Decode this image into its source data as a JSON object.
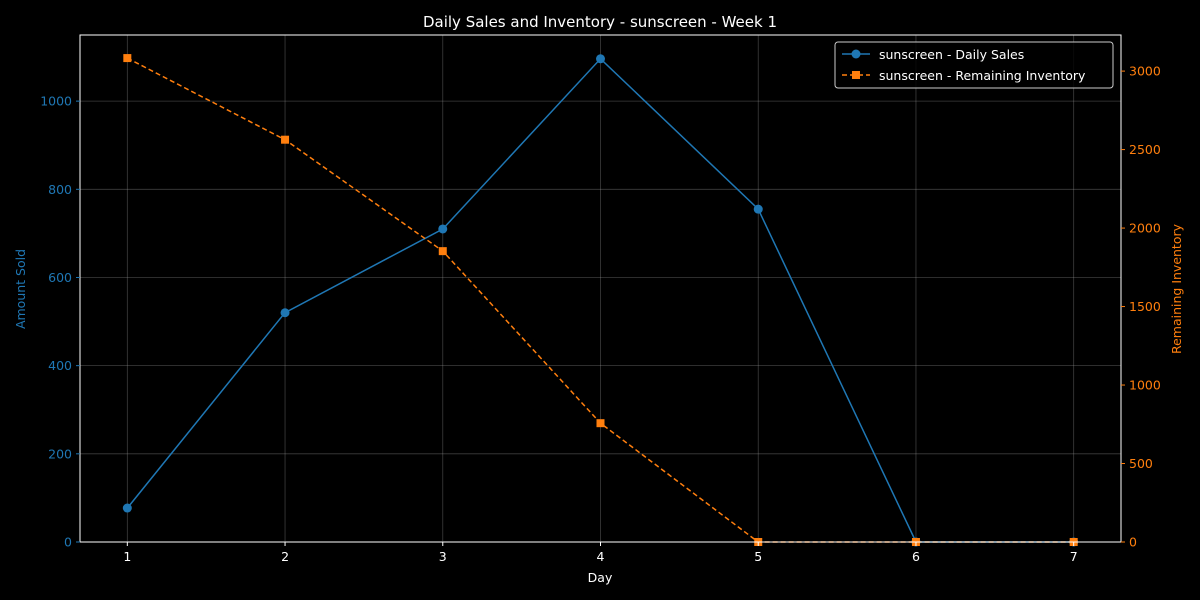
{
  "chart_data": {
    "type": "line",
    "title": "Daily Sales and Inventory - sunscreen - Week 1",
    "xlabel": "Day",
    "ylabel_left": "Amount Sold",
    "ylabel_right": "Remaining Inventory",
    "x": [
      1,
      2,
      3,
      4,
      5,
      6,
      7
    ],
    "x_ticks": [
      "1",
      "2",
      "3",
      "4",
      "5",
      "6",
      "7"
    ],
    "xlim": [
      0.7,
      7.3
    ],
    "ylim_left": [
      0,
      1150
    ],
    "ylim_right": [
      0,
      3230
    ],
    "yticks_left": [
      "0",
      "200",
      "400",
      "600",
      "800",
      "1000"
    ],
    "yticks_right": [
      "0",
      "500",
      "1000",
      "1500",
      "2000",
      "2500",
      "3000"
    ],
    "grid": true,
    "legend_position": "top-right",
    "background": "#000000",
    "series": [
      {
        "name": "sunscreen - Daily Sales",
        "axis": "left",
        "color": "#1f77b4",
        "linestyle": "solid",
        "marker": "circle",
        "values": [
          77,
          520,
          710,
          1096,
          755,
          0,
          0
        ]
      },
      {
        "name": "sunscreen - Remaining Inventory",
        "axis": "right",
        "color": "#ff7f0e",
        "linestyle": "dashed",
        "marker": "square",
        "values": [
          3083,
          2563,
          1853,
          757,
          0,
          0,
          0
        ]
      }
    ]
  }
}
